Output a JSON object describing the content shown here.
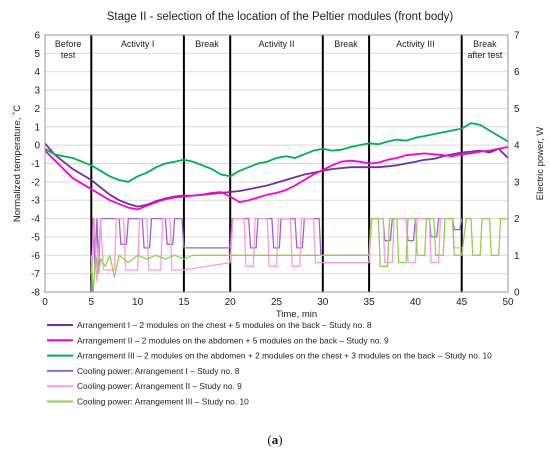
{
  "chart_data": {
    "type": "line",
    "title": "Stage II - selection of the location of the Peltier modules (front body)",
    "xlabel": "Time, min",
    "ylabel_left": "Normalized temperature, ˚C",
    "ylabel_right": "Electric power, W",
    "xlim": [
      0,
      50
    ],
    "ylim_left": [
      -8,
      6
    ],
    "ylim_right": [
      0,
      7
    ],
    "x_ticks": [
      "0",
      "5",
      "10",
      "15",
      "20",
      "25",
      "30",
      "35",
      "40",
      "45",
      "50"
    ],
    "y_ticks_left": [
      "6",
      "5",
      "4",
      "3",
      "2",
      "1",
      "0",
      "-1",
      "-2",
      "-3",
      "-4",
      "-5",
      "-6",
      "-7",
      "-8"
    ],
    "y_ticks_right": [
      "7",
      "6",
      "5",
      "4",
      "3",
      "2",
      "1",
      "0"
    ],
    "grid": true,
    "legend_position": "bottom",
    "phases": [
      {
        "label_lines": [
          "Before",
          "test"
        ],
        "start": 0,
        "end": 5
      },
      {
        "label_lines": [
          "Activity I"
        ],
        "start": 5,
        "end": 15
      },
      {
        "label_lines": [
          "Break"
        ],
        "start": 15,
        "end": 20
      },
      {
        "label_lines": [
          "Activity II"
        ],
        "start": 20,
        "end": 30
      },
      {
        "label_lines": [
          "Break"
        ],
        "start": 30,
        "end": 35
      },
      {
        "label_lines": [
          "Activity III"
        ],
        "start": 35,
        "end": 45
      },
      {
        "label_lines": [
          "Break",
          "after test"
        ],
        "start": 45,
        "end": 50
      }
    ],
    "phase_boundaries": [
      5,
      15,
      20,
      30,
      35,
      45
    ],
    "series": [
      {
        "name": "Arrangement I – 2 modules on the chest + 5 modules on the back – Study no. 8",
        "axis": "left",
        "color": "#7030a0",
        "x": [
          0,
          0.5,
          1,
          2,
          3,
          4,
          5,
          6,
          7,
          8,
          9,
          10,
          11,
          12,
          13,
          14,
          15,
          16,
          17,
          18,
          19,
          20,
          21,
          22,
          23,
          24,
          25,
          26,
          27,
          28,
          29,
          30,
          31,
          32,
          33,
          34,
          35,
          36,
          37,
          38,
          39,
          40,
          41,
          42,
          43,
          44,
          45,
          46,
          47,
          48,
          49,
          50
        ],
        "y": [
          0.1,
          -0.2,
          -0.5,
          -0.9,
          -1.3,
          -1.6,
          -1.9,
          -2.3,
          -2.7,
          -3.0,
          -3.2,
          -3.35,
          -3.25,
          -3.05,
          -2.9,
          -2.8,
          -2.75,
          -2.75,
          -2.7,
          -2.65,
          -2.6,
          -2.55,
          -2.5,
          -2.4,
          -2.3,
          -2.2,
          -2.05,
          -1.9,
          -1.75,
          -1.6,
          -1.5,
          -1.4,
          -1.3,
          -1.25,
          -1.2,
          -1.2,
          -1.2,
          -1.2,
          -1.15,
          -1.1,
          -1.0,
          -0.9,
          -0.8,
          -0.75,
          -0.6,
          -0.5,
          -0.4,
          -0.35,
          -0.3,
          -0.4,
          -0.2,
          -0.7
        ]
      },
      {
        "name": "Arrangement II – 2 modules on the abdomen + 5 modules on the back – Study no. 9",
        "axis": "left",
        "color": "#ff00cc",
        "x": [
          0,
          1,
          2,
          3,
          4,
          5,
          6,
          7,
          8,
          9,
          10,
          11,
          12,
          13,
          14,
          15,
          16,
          17,
          18,
          19,
          20,
          21,
          22,
          23,
          24,
          25,
          26,
          27,
          28,
          29,
          30,
          31,
          32,
          33,
          34,
          35,
          36,
          37,
          38,
          39,
          40,
          41,
          42,
          43,
          44,
          45,
          46,
          47,
          48,
          49,
          50
        ],
        "y": [
          -0.3,
          -0.8,
          -1.3,
          -1.8,
          -2.1,
          -2.4,
          -2.7,
          -3.0,
          -3.2,
          -3.4,
          -3.5,
          -3.3,
          -3.1,
          -2.95,
          -2.85,
          -2.8,
          -2.75,
          -2.7,
          -2.6,
          -2.55,
          -2.8,
          -3.1,
          -3.0,
          -2.85,
          -2.7,
          -2.6,
          -2.45,
          -2.2,
          -1.9,
          -1.6,
          -1.35,
          -1.1,
          -0.9,
          -0.85,
          -0.9,
          -1.0,
          -0.95,
          -0.8,
          -0.7,
          -0.55,
          -0.5,
          -0.45,
          -0.5,
          -0.55,
          -0.6,
          -0.5,
          -0.45,
          -0.35,
          -0.3,
          -0.2,
          -0.1
        ]
      },
      {
        "name": "Arrangement III – 2 modules on the abdomen + 2 modules on the chest + 3 modules on the back – Study no. 10",
        "axis": "left",
        "color": "#00b050",
        "x": [
          0,
          1,
          2,
          3,
          4,
          5,
          6,
          7,
          8,
          9,
          10,
          11,
          12,
          13,
          14,
          15,
          16,
          17,
          18,
          19,
          20,
          21,
          22,
          23,
          24,
          25,
          26,
          27,
          28,
          29,
          30,
          31,
          32,
          33,
          34,
          35,
          36,
          37,
          38,
          39,
          40,
          41,
          42,
          43,
          44,
          45,
          46,
          47,
          48,
          49,
          50
        ],
        "y": [
          -0.2,
          -0.5,
          -0.6,
          -0.7,
          -0.9,
          -1.1,
          -1.4,
          -1.7,
          -1.9,
          -2.0,
          -1.7,
          -1.5,
          -1.2,
          -1.0,
          -0.9,
          -0.8,
          -0.9,
          -1.1,
          -1.3,
          -1.6,
          -1.7,
          -1.4,
          -1.2,
          -1.0,
          -0.9,
          -0.7,
          -0.6,
          -0.7,
          -0.5,
          -0.3,
          -0.2,
          -0.3,
          -0.25,
          -0.1,
          0.0,
          0.1,
          0.05,
          0.2,
          0.3,
          0.25,
          0.4,
          0.5,
          0.6,
          0.7,
          0.8,
          0.9,
          1.2,
          1.1,
          0.8,
          0.5,
          0.2
        ]
      },
      {
        "name": "Cooling power: Arrangement I – Study no. 8",
        "axis": "right",
        "color": "#9966cc",
        "x": [
          5,
          5.2,
          5.4,
          5.6,
          5.8,
          6,
          6.2,
          8,
          8.2,
          8.8,
          9,
          10.5,
          10.7,
          11.3,
          11.5,
          13,
          13.2,
          13.8,
          14,
          14.8,
          15,
          20,
          20.2,
          22,
          22.2,
          22.8,
          23,
          24.5,
          24.7,
          25.3,
          25.5,
          27,
          27.2,
          27.8,
          28,
          29.6,
          29.8,
          35,
          35.2,
          36.5,
          36.7,
          37.3,
          37.5,
          39,
          39.2,
          39.8,
          40,
          41.5,
          41.7,
          42.3,
          42.5,
          44,
          44.2,
          44.8,
          45
        ],
        "y": [
          0,
          2,
          0.6,
          2,
          0.7,
          2,
          2,
          2,
          1.3,
          1.3,
          2,
          2,
          1.2,
          1.2,
          2,
          2,
          1.3,
          1.3,
          2,
          2,
          1.2,
          1.2,
          2,
          2,
          1.2,
          1.2,
          2,
          2,
          1.2,
          1.2,
          2,
          2,
          1.2,
          1.2,
          2,
          2,
          1.0,
          1.0,
          2,
          2,
          1.4,
          1.4,
          2,
          2,
          1.4,
          1.4,
          2,
          2,
          1.5,
          1.5,
          2,
          2,
          1.7,
          1.7,
          2
        ]
      },
      {
        "name": "Cooling power: Arrangement II – Study no. 9",
        "axis": "right",
        "color": "#ff99dd",
        "x": [
          5,
          5.3,
          5.6,
          6,
          6.3,
          7.5,
          7.7,
          8.5,
          8.7,
          10,
          10.2,
          11,
          11.2,
          12.5,
          12.7,
          13.5,
          13.7,
          15,
          20,
          20.3,
          21.5,
          21.7,
          22.5,
          22.7,
          24,
          24.2,
          25,
          25.2,
          26.5,
          26.7,
          27.5,
          27.7,
          29,
          29.2,
          30,
          35,
          35.3,
          36.5,
          36.7,
          37.5,
          37.7,
          39,
          39.2,
          40,
          40.2,
          41.5,
          41.7,
          42.5,
          42.7,
          44,
          44.2,
          45
        ],
        "y": [
          0.5,
          2,
          0.3,
          2,
          0.6,
          0.6,
          2,
          2,
          0.6,
          0.6,
          2,
          2,
          0.6,
          0.6,
          2,
          2,
          0.6,
          0.6,
          0.8,
          2,
          2,
          0.7,
          0.7,
          2,
          2,
          0.7,
          0.7,
          2,
          2,
          0.7,
          0.7,
          2,
          2,
          0.8,
          0.8,
          0.8,
          2,
          2,
          0.8,
          0.8,
          2,
          2,
          0.8,
          0.8,
          2,
          2,
          0.8,
          0.8,
          2,
          2,
          1.2,
          1.2
        ]
      },
      {
        "name": "Cooling power: Arrangement III – Study no. 10",
        "axis": "right",
        "color": "#92d050",
        "x": [
          5,
          5.2,
          5.5,
          5.8,
          6,
          6.5,
          7,
          7.5,
          8,
          9,
          10,
          11,
          12,
          13,
          14,
          15,
          16,
          17,
          18,
          19,
          20,
          21,
          22,
          23,
          24,
          25,
          26,
          27,
          28,
          29,
          30,
          31,
          32,
          33,
          34,
          35,
          35.2,
          36,
          36.2,
          37,
          37.2,
          38,
          38.2,
          39,
          39.2,
          40,
          40.2,
          41,
          41.2,
          42,
          42.2,
          43,
          43.2,
          44,
          44.2,
          45,
          45.5,
          46,
          46.2,
          47,
          47.2,
          48,
          48.2,
          49,
          49.2,
          50
        ],
        "y": [
          1.0,
          0,
          1.0,
          0.5,
          0.9,
          0.7,
          1.0,
          0.4,
          1.0,
          0.8,
          1.0,
          0.9,
          1.0,
          0.9,
          1.0,
          0.9,
          1.0,
          1.0,
          1.0,
          1.0,
          1.0,
          1.0,
          1.0,
          1.0,
          1.0,
          1.0,
          1.0,
          1.0,
          1.0,
          1.0,
          1.0,
          1.0,
          1.0,
          1.0,
          1.0,
          1.0,
          2,
          2,
          0.7,
          0.7,
          2,
          2,
          0.8,
          0.8,
          2,
          2,
          1.0,
          1.0,
          2,
          2,
          1.0,
          1.0,
          2,
          2,
          1.0,
          1.0,
          2,
          2,
          1.0,
          1.0,
          2,
          2,
          1.0,
          1.0,
          2,
          2
        ]
      }
    ]
  },
  "caption": {
    "open": "(",
    "label": "a",
    "close": ")"
  }
}
